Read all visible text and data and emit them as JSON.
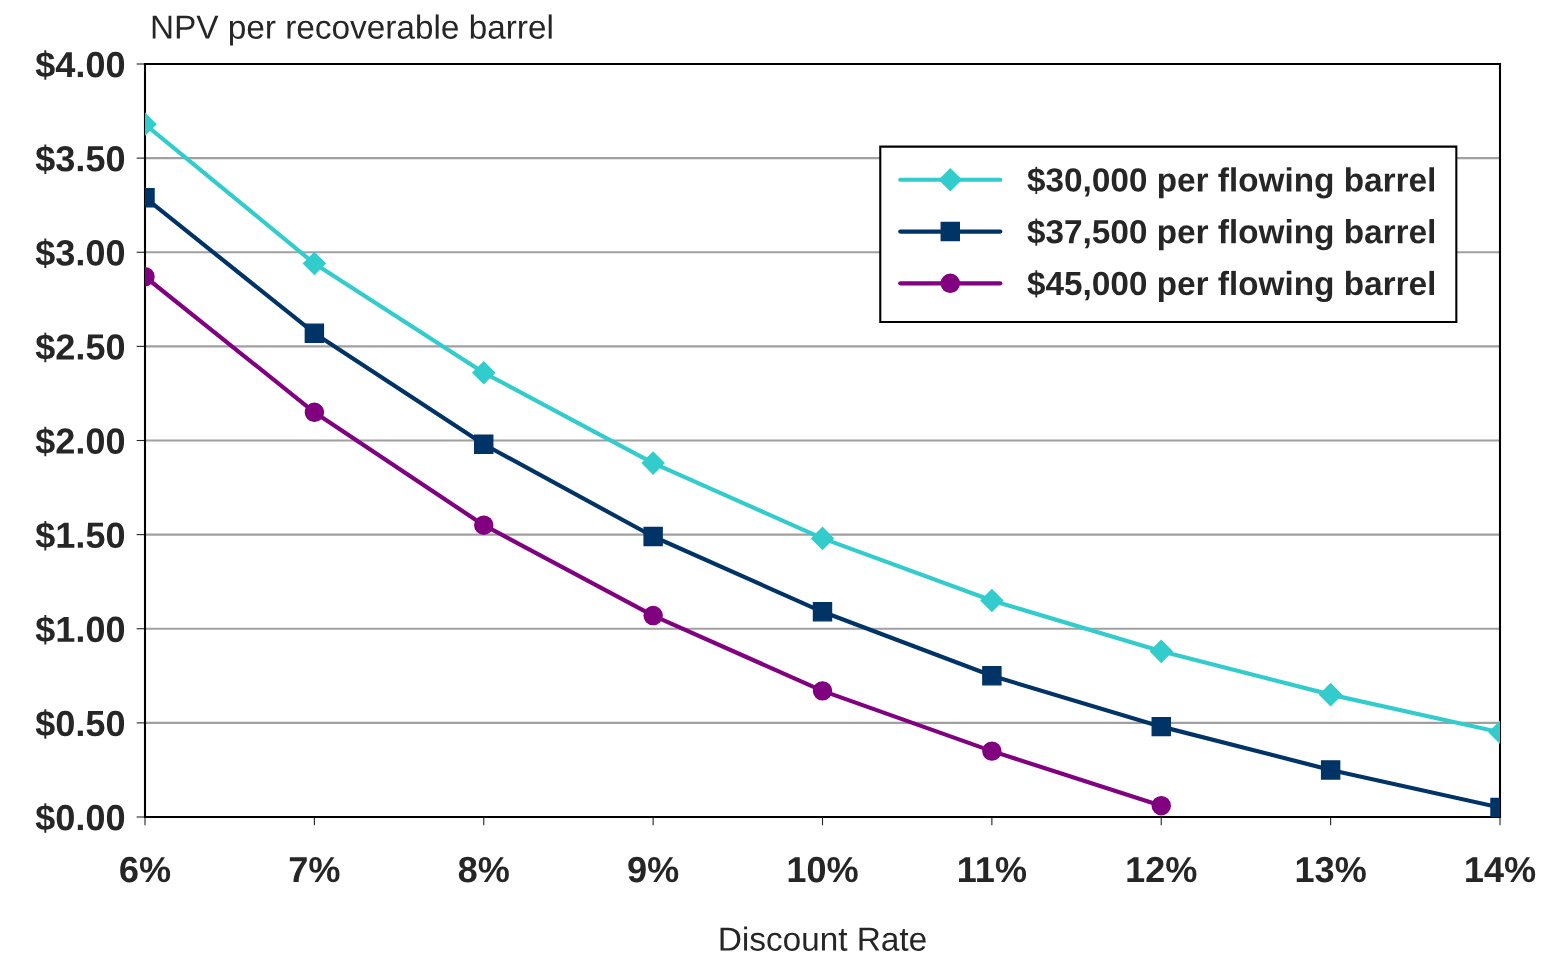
{
  "chart_data": {
    "type": "line",
    "ylabel": "NPV per recoverable barrel",
    "xlabel": "Discount Rate",
    "categories": [
      "6%",
      "7%",
      "8%",
      "9%",
      "10%",
      "11%",
      "12%",
      "13%",
      "14%"
    ],
    "series": [
      {
        "name": "$30,000 per flowing barrel",
        "color": "#33cccc",
        "marker": "diamond",
        "values": [
          3.68,
          2.94,
          2.36,
          1.88,
          1.48,
          1.15,
          0.88,
          0.65,
          0.45
        ]
      },
      {
        "name": "$37,500 per flowing barrel",
        "color": "#003366",
        "marker": "square",
        "values": [
          3.29,
          2.57,
          1.98,
          1.49,
          1.09,
          0.75,
          0.48,
          0.25,
          0.05
        ]
      },
      {
        "name": "$45,000 per flowing barrel",
        "color": "#800080",
        "marker": "circle",
        "values": [
          2.87,
          2.15,
          1.55,
          1.07,
          0.67,
          0.35,
          0.06,
          null,
          null
        ]
      }
    ],
    "ylim": [
      0,
      4
    ],
    "yticks": [
      {
        "value": 0,
        "label": "$0.00"
      },
      {
        "value": 0.5,
        "label": "$0.50"
      },
      {
        "value": 1,
        "label": "$1.00"
      },
      {
        "value": 1.5,
        "label": "$1.50"
      },
      {
        "value": 2,
        "label": "$2.00"
      },
      {
        "value": 2.5,
        "label": "$2.50"
      },
      {
        "value": 3,
        "label": "$3.00"
      },
      {
        "value": 3.5,
        "label": "$3.50"
      },
      {
        "value": 4,
        "label": "$4.00"
      }
    ],
    "grid": "y",
    "legend": "top right",
    "line_style": "solid"
  }
}
